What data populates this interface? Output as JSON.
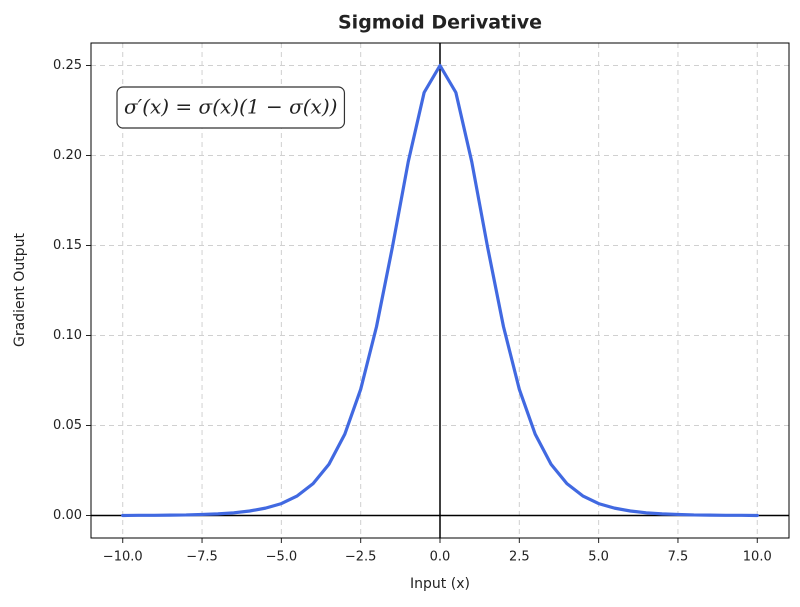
{
  "chart_data": {
    "type": "line",
    "title": "Sigmoid Derivative",
    "x_label": "Input (x)",
    "y_label": "Gradient Output",
    "annotation": "σ′(x) = σ(x)(1 − σ(x))",
    "x": [
      -10,
      -9.5,
      -9,
      -8.5,
      -8,
      -7.5,
      -7,
      -6.5,
      -6,
      -5.5,
      -5,
      -4.5,
      -4,
      -3.5,
      -3,
      -2.5,
      -2,
      -1.5,
      -1,
      -0.5,
      0,
      0.5,
      1,
      1.5,
      2,
      2.5,
      3,
      3.5,
      4,
      4.5,
      5,
      5.5,
      6,
      6.5,
      7,
      7.5,
      8,
      8.5,
      9,
      9.5,
      10
    ],
    "values": [
      0.0,
      0.0001,
      0.0001,
      0.0002,
      0.0003,
      0.0006,
      0.0009,
      0.0015,
      0.0025,
      0.0041,
      0.0066,
      0.0109,
      0.0177,
      0.0285,
      0.0452,
      0.0701,
      0.105,
      0.1491,
      0.1966,
      0.235,
      0.25,
      0.235,
      0.1966,
      0.1491,
      0.105,
      0.0701,
      0.0452,
      0.0285,
      0.0177,
      0.0109,
      0.0066,
      0.0041,
      0.0025,
      0.0015,
      0.0009,
      0.0006,
      0.0003,
      0.0002,
      0.0001,
      0.0001,
      0.0
    ],
    "color": "#4169e1",
    "xlim": [
      -11,
      11
    ],
    "ylim": [
      -0.0125,
      0.2625
    ],
    "xticks": [
      {
        "value": -10,
        "label": "−10.0"
      },
      {
        "value": -7.5,
        "label": "−7.5"
      },
      {
        "value": -5,
        "label": "−5.0"
      },
      {
        "value": -2.5,
        "label": "−2.5"
      },
      {
        "value": 0,
        "label": "0.0"
      },
      {
        "value": 2.5,
        "label": "2.5"
      },
      {
        "value": 5,
        "label": "5.0"
      },
      {
        "value": 7.5,
        "label": "7.5"
      },
      {
        "value": 10,
        "label": "10.0"
      }
    ],
    "yticks": [
      {
        "value": 0,
        "label": "0.00"
      },
      {
        "value": 0.05,
        "label": "0.05"
      },
      {
        "value": 0.1,
        "label": "0.10"
      },
      {
        "value": 0.15,
        "label": "0.15"
      },
      {
        "value": 0.2,
        "label": "0.20"
      },
      {
        "value": 0.25,
        "label": "0.25"
      }
    ],
    "grid": true
  }
}
